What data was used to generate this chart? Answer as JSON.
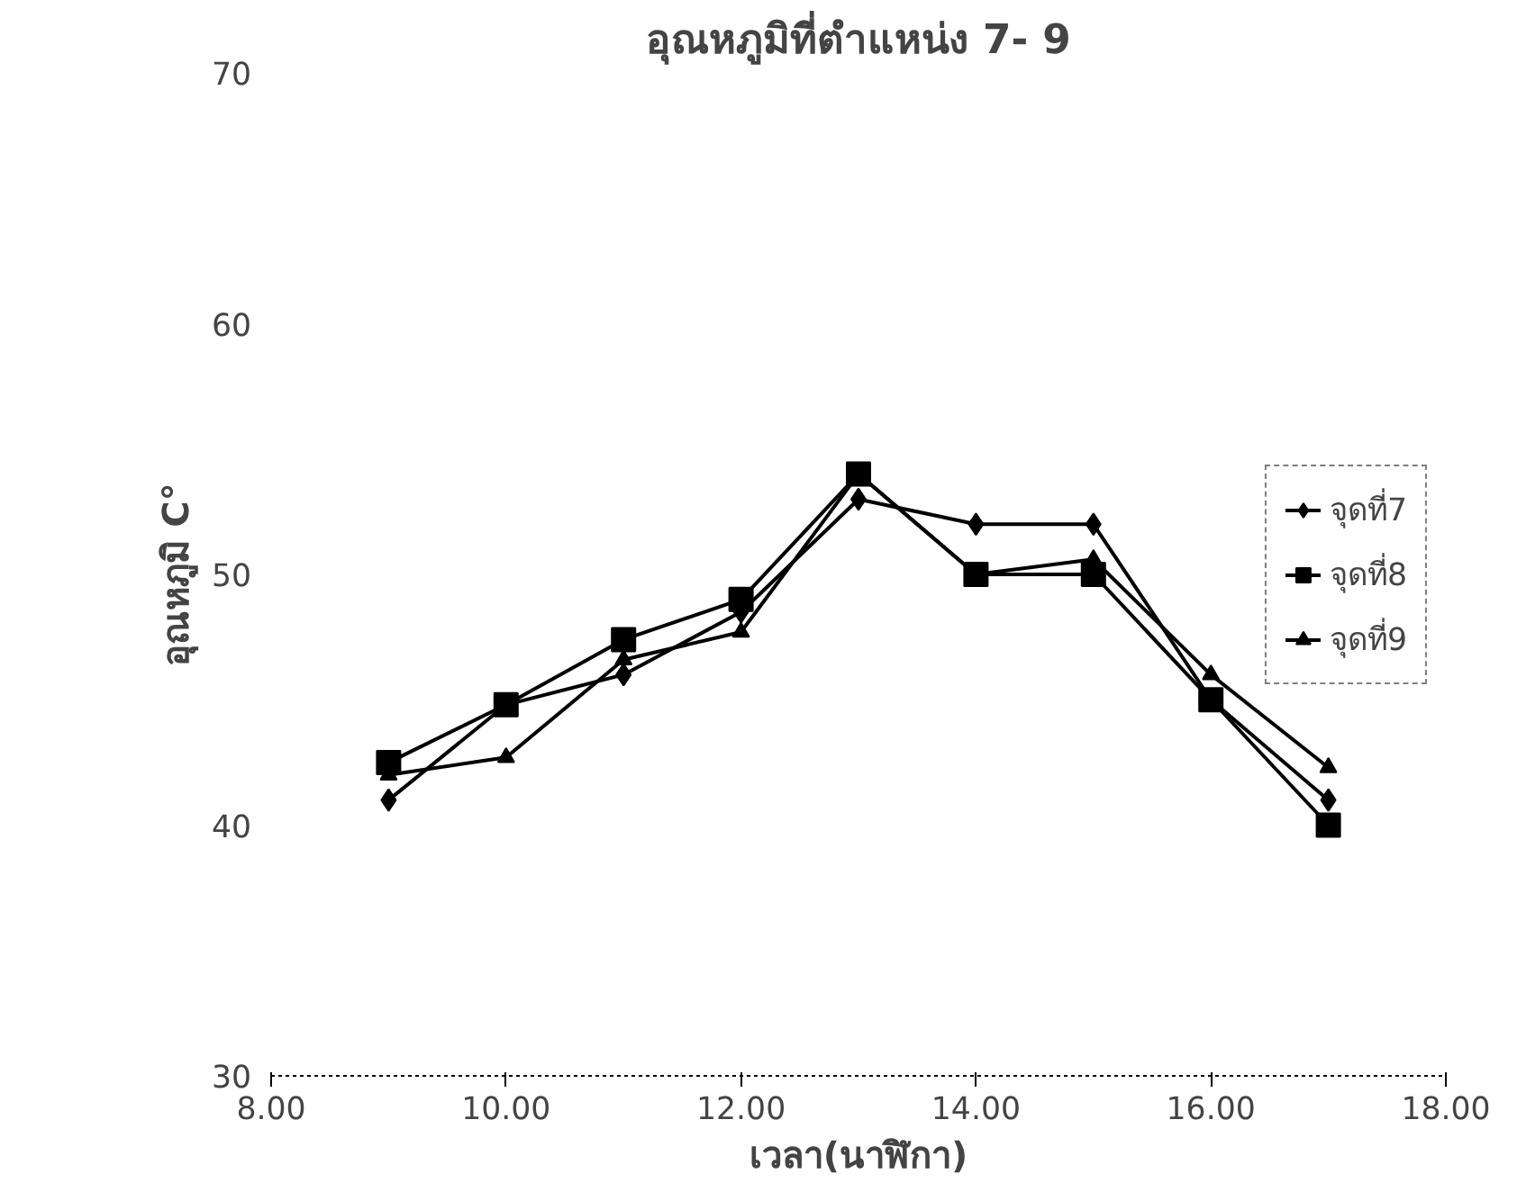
{
  "chart_data": {
    "type": "line",
    "title": "อุณหภูมิที่ตำแหน่ง 7- 9",
    "xlabel": "เวลา(นาฬิกา)",
    "ylabel": "อุณหภูมิ C°",
    "x": [
      9,
      10,
      11,
      12,
      13,
      14,
      15,
      16,
      17
    ],
    "xlim": [
      8,
      18
    ],
    "xticks": [
      {
        "value": 8,
        "label": "8.00"
      },
      {
        "value": 10,
        "label": "10.00"
      },
      {
        "value": 12,
        "label": "12.00"
      },
      {
        "value": 14,
        "label": "14.00"
      },
      {
        "value": 16,
        "label": "16.00"
      },
      {
        "value": 18,
        "label": "18.00"
      }
    ],
    "ylim": [
      30,
      70
    ],
    "yticks": [
      30,
      40,
      50,
      60,
      70
    ],
    "grid": false,
    "legend": "right",
    "line_style": "solid",
    "series": [
      {
        "name": "จุดที่7",
        "color": "#000000",
        "marker": "diamond",
        "values": [
          41,
          44.8,
          46,
          48.5,
          53,
          52,
          52,
          45,
          41
        ]
      },
      {
        "name": "จุดที่8",
        "color": "#000000",
        "marker": "square",
        "values": [
          42.5,
          44.8,
          47.4,
          49,
          54,
          50,
          50,
          45,
          40
        ]
      },
      {
        "name": "จุดที่9",
        "color": "#000000",
        "marker": "triangle",
        "values": [
          42,
          42.7,
          46.6,
          47.7,
          54,
          50,
          50.6,
          46,
          42.3
        ]
      }
    ]
  }
}
